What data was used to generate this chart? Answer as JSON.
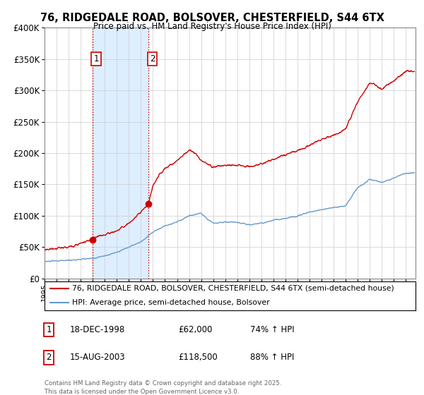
{
  "title": "76, RIDGEDALE ROAD, BOLSOVER, CHESTERFIELD, S44 6TX",
  "subtitle": "Price paid vs. HM Land Registry's House Price Index (HPI)",
  "legend_line1": "76, RIDGEDALE ROAD, BOLSOVER, CHESTERFIELD, S44 6TX (semi-detached house)",
  "legend_line2": "HPI: Average price, semi-detached house, Bolsover",
  "transaction1_label": "1",
  "transaction1_date": "18-DEC-1998",
  "transaction1_price": "£62,000",
  "transaction1_hpi": "74% ↑ HPI",
  "transaction2_label": "2",
  "transaction2_date": "15-AUG-2003",
  "transaction2_price": "£118,500",
  "transaction2_hpi": "88% ↑ HPI",
  "footer": "Contains HM Land Registry data © Crown copyright and database right 2025.\nThis data is licensed under the Open Government Licence v3.0.",
  "sale1_year": 1998.96,
  "sale1_price": 62000,
  "sale2_year": 2003.62,
  "sale2_price": 118500,
  "red_color": "#cc0000",
  "blue_color": "#6699cc",
  "shade_color": "#ddeeff",
  "ylim_max": 400000,
  "ylim_min": 0,
  "xmin": 1995,
  "xmax": 2025.8
}
